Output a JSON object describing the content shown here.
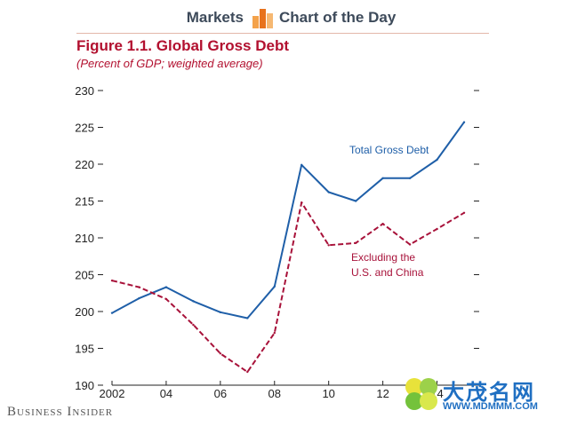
{
  "header": {
    "left_label": "Markets",
    "right_label": "Chart of the Day",
    "logo_colors": [
      "#f4a24a",
      "#e8721c",
      "#f6b872"
    ]
  },
  "brand": "Business Insider",
  "watermark": {
    "cn_text": "大茂名网",
    "url": "WWW.MDMMM.COM"
  },
  "chart_data": {
    "type": "line",
    "title": "Figure 1.1. Global Gross Debt",
    "subtitle": "(Percent of GDP; weighted average)",
    "x": [
      2002,
      2003,
      2004,
      2005,
      2006,
      2007,
      2008,
      2009,
      2010,
      2011,
      2012,
      2013,
      2014,
      2015
    ],
    "xticks": [
      2002,
      2004,
      2006,
      2008,
      2010,
      2012,
      2014
    ],
    "xtick_labels": [
      "2002",
      "04",
      "06",
      "08",
      "10",
      "12",
      "14"
    ],
    "xlim": [
      2002,
      2015
    ],
    "ylim": [
      190,
      230
    ],
    "yticks": [
      190,
      195,
      200,
      205,
      210,
      215,
      220,
      225,
      230
    ],
    "grid": false,
    "series": [
      {
        "name": "Total Gross Debt",
        "color": "#1f5fa8",
        "style": "solid",
        "values": [
          199.8,
          201.8,
          203.3,
          201.4,
          199.9,
          199.1,
          203.4,
          219.9,
          216.2,
          215.0,
          218.1,
          218.1,
          220.6,
          225.7
        ]
      },
      {
        "name": "Excluding the U.S. and China",
        "name_lines": [
          "Excluding the",
          "U.S. and China"
        ],
        "color": "#a8123a",
        "style": "dashed",
        "values": [
          204.2,
          203.3,
          201.7,
          198.2,
          194.3,
          191.8,
          197.1,
          214.8,
          209.0,
          209.3,
          211.9,
          209.1,
          211.2,
          213.4
        ]
      }
    ]
  }
}
